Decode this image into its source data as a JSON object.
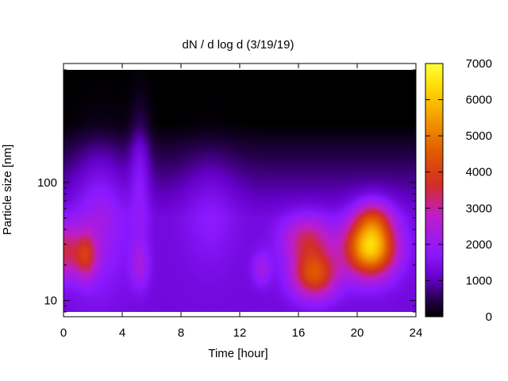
{
  "chart_data": {
    "type": "heatmap",
    "title": "dN / d log d (3/19/19)",
    "xlabel": "Time [hour]",
    "ylabel": "Particle size [nm]",
    "x_scale": "linear",
    "y_scale": "log",
    "xlim": [
      0,
      24
    ],
    "ylim": [
      8,
      900
    ],
    "x_ticks": [
      0,
      4,
      8,
      12,
      16,
      20,
      24
    ],
    "x_tick_labels": [
      "0",
      "4",
      "8",
      "12",
      "16",
      "20",
      "24"
    ],
    "y_ticks": [
      10,
      100
    ],
    "y_tick_labels": [
      "10",
      "100"
    ],
    "colorbar": {
      "range": [
        0,
        7000
      ],
      "ticks": [
        0,
        1000,
        2000,
        3000,
        4000,
        5000,
        6000,
        7000
      ],
      "tick_labels": [
        "0",
        "1000",
        "2000",
        "3000",
        "4000",
        "5000",
        "6000",
        "7000"
      ],
      "colormap": [
        "#000000",
        "#2d0a5a",
        "#6a00d8",
        "#8a1cff",
        "#c020c0",
        "#d83a10",
        "#f08a00",
        "#ffd800",
        "#ffff40"
      ]
    },
    "features": [
      {
        "time_h": 20.9,
        "size_nm": 27,
        "dN_dlogd": 6300
      },
      {
        "time_h": 17.0,
        "size_nm": 16,
        "dN_dlogd": 4500
      },
      {
        "time_h": 16.5,
        "size_nm": 32,
        "dN_dlogd": 3800
      },
      {
        "time_h": 13.5,
        "size_nm": 18,
        "dN_dlogd": 3000
      },
      {
        "time_h": 1.5,
        "size_nm": 24,
        "dN_dlogd": 3500
      },
      {
        "time_h": 0.0,
        "size_nm": 26,
        "dN_dlogd": 3000
      },
      {
        "time_h": 5.2,
        "size_nm": 20,
        "dN_dlogd": 2800
      },
      {
        "time_h": 5.2,
        "size_nm": 150,
        "dN_dlogd": 1900
      },
      {
        "time_h": 2.5,
        "size_nm": 80,
        "dN_dlogd": 1700
      },
      {
        "time_h": 10.0,
        "size_nm": 60,
        "dN_dlogd": 1500
      }
    ],
    "grid": false,
    "legend": "colorbar-right"
  }
}
